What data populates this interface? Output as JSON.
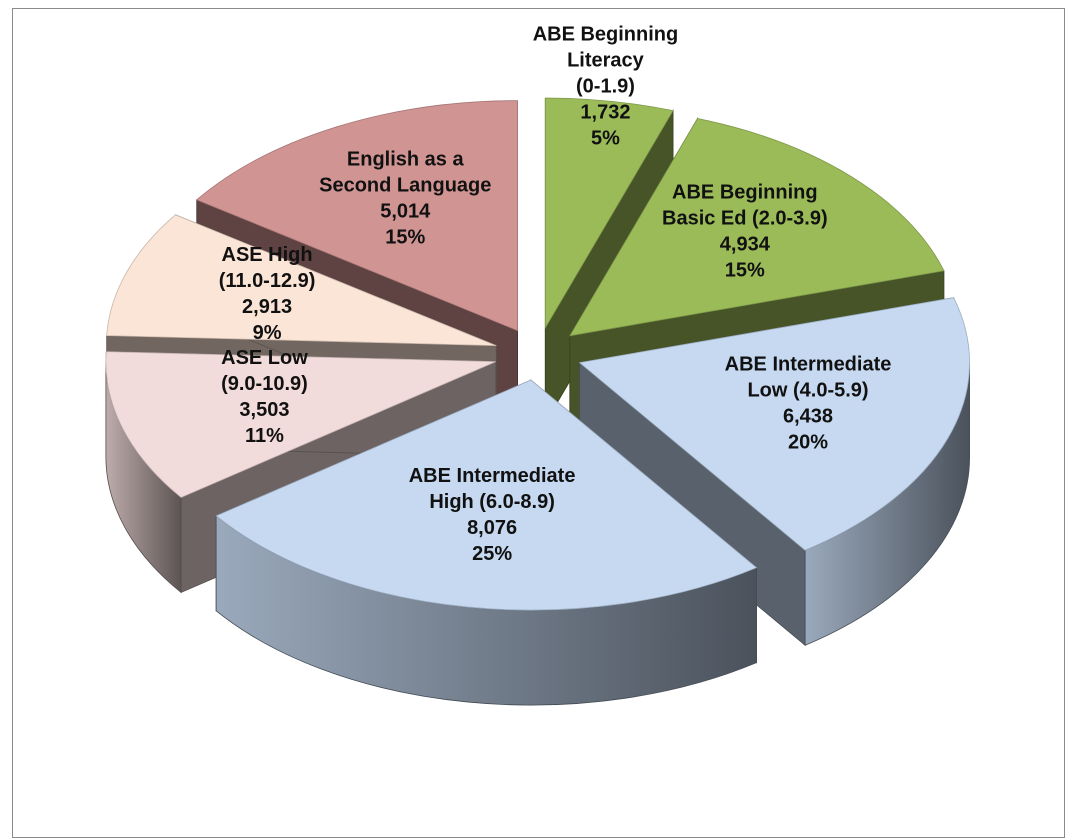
{
  "chart_data": {
    "type": "pie",
    "title": "",
    "slices": [
      {
        "label_lines": [
          "ABE Beginning",
          "Literacy",
          "(0-1.9)"
        ],
        "value_text": "1,732",
        "value": 1732,
        "percent_text": "5%",
        "color": "#9bbb59"
      },
      {
        "label_lines": [
          "ABE Beginning",
          "Basic Ed (2.0-3.9)"
        ],
        "value_text": "4,934",
        "value": 4934,
        "percent_text": "15%",
        "color": "#9bbb59"
      },
      {
        "label_lines": [
          "ABE Intermediate",
          "Low (4.0-5.9)"
        ],
        "value_text": "6,438",
        "value": 6438,
        "percent_text": "20%",
        "color": "#c6d9f1"
      },
      {
        "label_lines": [
          "ABE Intermediate",
          "High (6.0-8.9)"
        ],
        "value_text": "8,076",
        "value": 8076,
        "percent_text": "25%",
        "color": "#c6d9f1"
      },
      {
        "label_lines": [
          "ASE Low",
          "(9.0-10.9)"
        ],
        "value_text": "3,503",
        "value": 3503,
        "percent_text": "11%",
        "color": "#f2dcdb"
      },
      {
        "label_lines": [
          "ASE High",
          "(11.0-12.9)"
        ],
        "value_text": "2,913",
        "value": 2913,
        "percent_text": "9%",
        "color": "#fbe5d6"
      },
      {
        "label_lines": [
          "English as a",
          "Second Language"
        ],
        "value_text": "5,014",
        "value": 5014,
        "percent_text": "15%",
        "color": "#d09493"
      }
    ],
    "legend": "none",
    "style": "3d-exploded"
  }
}
